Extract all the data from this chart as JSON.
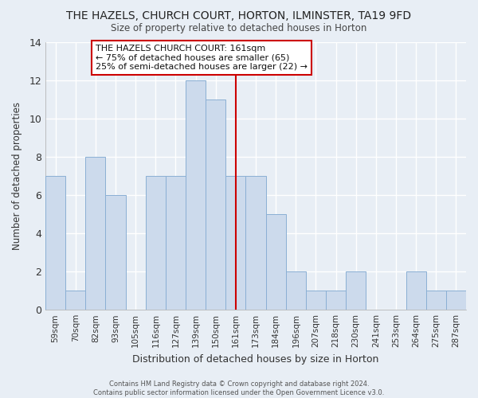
{
  "title": "THE HAZELS, CHURCH COURT, HORTON, ILMINSTER, TA19 9FD",
  "subtitle": "Size of property relative to detached houses in Horton",
  "xlabel": "Distribution of detached houses by size in Horton",
  "ylabel": "Number of detached properties",
  "bin_labels": [
    "59sqm",
    "70sqm",
    "82sqm",
    "93sqm",
    "105sqm",
    "116sqm",
    "127sqm",
    "139sqm",
    "150sqm",
    "161sqm",
    "173sqm",
    "184sqm",
    "196sqm",
    "207sqm",
    "218sqm",
    "230sqm",
    "241sqm",
    "253sqm",
    "264sqm",
    "275sqm",
    "287sqm"
  ],
  "bar_heights": [
    7,
    1,
    8,
    6,
    0,
    7,
    7,
    12,
    11,
    7,
    7,
    5,
    2,
    1,
    1,
    2,
    0,
    0,
    2,
    1,
    1
  ],
  "bar_color": "#ccdaec",
  "bar_edge_color": "#8aafd4",
  "vline_x_label": "161sqm",
  "vline_color": "#cc0000",
  "ylim": [
    0,
    14
  ],
  "yticks": [
    0,
    2,
    4,
    6,
    8,
    10,
    12,
    14
  ],
  "annotation_title": "THE HAZELS CHURCH COURT: 161sqm",
  "annotation_line1": "← 75% of detached houses are smaller (65)",
  "annotation_line2": "25% of semi-detached houses are larger (22) →",
  "annotation_box_color": "#ffffff",
  "annotation_border_color": "#cc0000",
  "footer_line1": "Contains HM Land Registry data © Crown copyright and database right 2024.",
  "footer_line2": "Contains public sector information licensed under the Open Government Licence v3.0.",
  "bg_color": "#e8eef5",
  "plot_bg_color": "#e8eef5",
  "grid_color": "#ffffff"
}
